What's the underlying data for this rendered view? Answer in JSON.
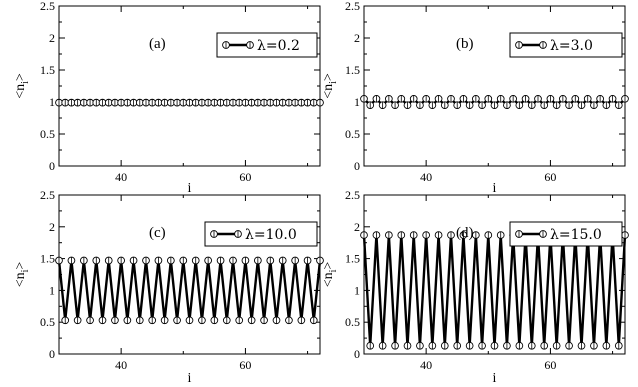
{
  "chart_data": [
    {
      "type": "line",
      "panel_label": "(a)",
      "legend": "λ=0.2",
      "xlabel": "i",
      "ylabel_main": "<n",
      "ylabel_sub": "i",
      "ylabel_end": ">",
      "xlim": [
        30,
        72
      ],
      "ylim": [
        0,
        2.5
      ],
      "xticks": [
        40,
        60
      ],
      "yticks": [
        0,
        0.5,
        1,
        1.5,
        2,
        2.5
      ],
      "ytick_labels": [
        "0",
        "0.5",
        "1",
        "1.5",
        "2",
        "2.5"
      ],
      "x_range": [
        30,
        72
      ],
      "y_even": 0.99,
      "y_odd": 0.99
    },
    {
      "type": "line",
      "panel_label": "(b)",
      "legend": "λ=3.0",
      "xlabel": "i",
      "ylabel_main": "<n",
      "ylabel_sub": "i",
      "ylabel_end": ">",
      "xlim": [
        30,
        72
      ],
      "ylim": [
        0,
        2.5
      ],
      "xticks": [
        40,
        60
      ],
      "yticks": [
        0,
        0.5,
        1,
        1.5,
        2,
        2.5
      ],
      "ytick_labels": [
        "0",
        "0.5",
        "1",
        "1.5",
        "2",
        "2.5"
      ],
      "x_range": [
        30,
        72
      ],
      "y_even": 1.05,
      "y_odd": 0.95
    },
    {
      "type": "line",
      "panel_label": "(c)",
      "legend": "λ=10.0",
      "xlabel": "i",
      "ylabel_main": "<n",
      "ylabel_sub": "i",
      "ylabel_end": ">",
      "xlim": [
        30,
        72
      ],
      "ylim": [
        0,
        2.5
      ],
      "xticks": [
        40,
        60
      ],
      "yticks": [
        0,
        0.5,
        1,
        1.5,
        2,
        2.5
      ],
      "ytick_labels": [
        "0",
        "0.5",
        "1",
        "1.5",
        "2",
        "2.5"
      ],
      "x_range": [
        30,
        72
      ],
      "y_even": 1.47,
      "y_odd": 0.53
    },
    {
      "type": "line",
      "panel_label": "(d)",
      "legend": "λ=15.0",
      "xlabel": "i",
      "ylabel_main": "<n",
      "ylabel_sub": "i",
      "ylabel_end": ">",
      "xlim": [
        30,
        72
      ],
      "ylim": [
        0,
        2.5
      ],
      "xticks": [
        40,
        60
      ],
      "yticks": [
        0,
        0.5,
        1,
        1.5,
        2,
        2.5
      ],
      "ytick_labels": [
        "0",
        "0.5",
        "1",
        "1.5",
        "2",
        "2.5"
      ],
      "x_range": [
        30,
        72
      ],
      "y_even": 1.87,
      "y_odd": 0.13
    }
  ]
}
